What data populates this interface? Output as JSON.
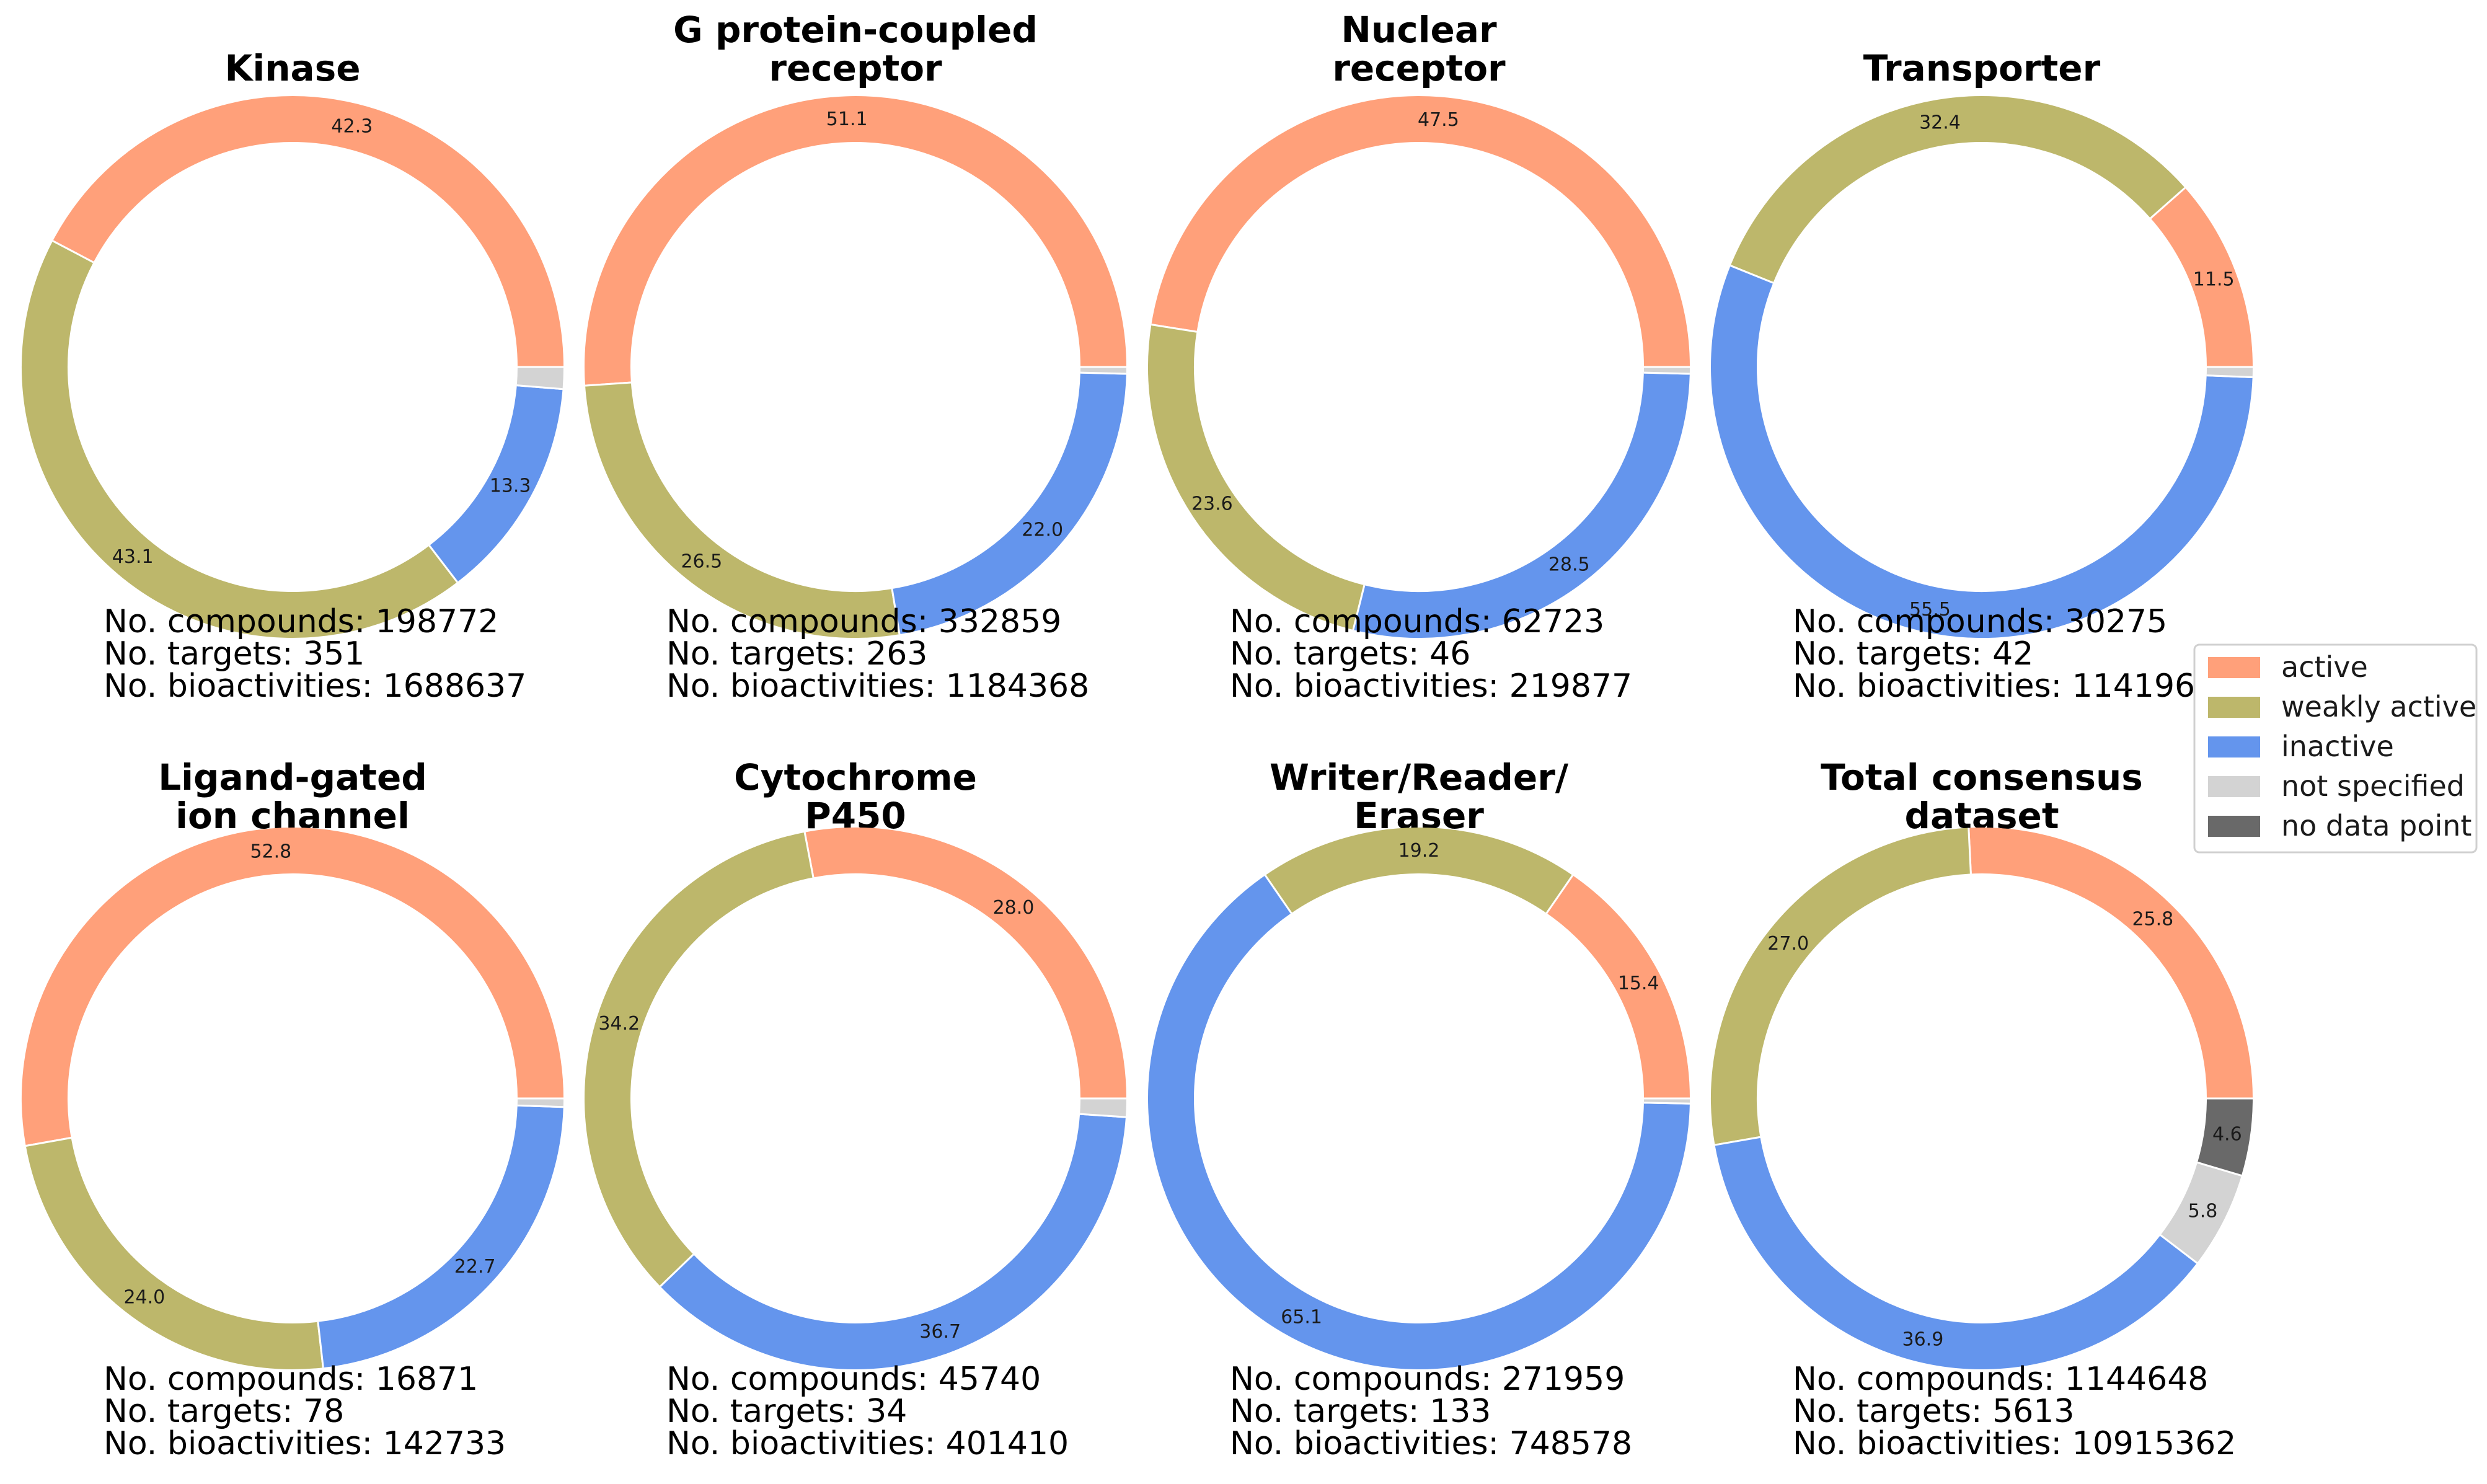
{
  "categories_meta": {
    "names": [
      "active",
      "weakly active",
      "inactive",
      "not specified",
      "no data point"
    ],
    "colors": [
      "#FFA07A",
      "#BDB76B",
      "#6495ED",
      "#D3D3D3",
      "#696969"
    ]
  },
  "chart_data": [
    {
      "type": "pie",
      "title_lines": [
        "Kinase"
      ],
      "categories": [
        "active",
        "weakly active",
        "inactive",
        "not specified",
        "no data point"
      ],
      "values": [
        42.3,
        43.1,
        13.3,
        1.3,
        0
      ],
      "labels": [
        "42.3",
        "43.1",
        "13.3",
        "",
        ""
      ],
      "stats": [
        "No. compounds: 198772",
        "No. targets: 351",
        "No. bioactivities: 1688637"
      ]
    },
    {
      "type": "pie",
      "title_lines": [
        "G protein-coupled",
        "receptor"
      ],
      "categories": [
        "active",
        "weakly active",
        "inactive",
        "not specified",
        "no data point"
      ],
      "values": [
        51.1,
        26.5,
        22.0,
        0.4,
        0
      ],
      "labels": [
        "51.1",
        "26.5",
        "22.0",
        "",
        ""
      ],
      "stats": [
        "No. compounds: 332859",
        "No. targets: 263",
        "No. bioactivities: 1184368"
      ]
    },
    {
      "type": "pie",
      "title_lines": [
        "Nuclear",
        "receptor"
      ],
      "categories": [
        "active",
        "weakly active",
        "inactive",
        "not specified",
        "no data point"
      ],
      "values": [
        47.5,
        23.6,
        28.5,
        0.4,
        0
      ],
      "labels": [
        "47.5",
        "23.6",
        "28.5",
        "",
        ""
      ],
      "stats": [
        "No. compounds: 62723",
        "No. targets: 46",
        "No. bioactivities: 219877"
      ]
    },
    {
      "type": "pie",
      "title_lines": [
        "Transporter"
      ],
      "categories": [
        "active",
        "weakly active",
        "inactive",
        "not specified",
        "no data point"
      ],
      "values": [
        11.5,
        32.4,
        55.5,
        0.6,
        0
      ],
      "labels": [
        "11.5",
        "32.4",
        "55.5",
        "",
        ""
      ],
      "stats": [
        "No. compounds: 30275",
        "No. targets: 42",
        "No. bioactivities: 114196"
      ]
    },
    {
      "type": "pie",
      "title_lines": [
        "Ligand-gated",
        "ion channel"
      ],
      "categories": [
        "active",
        "weakly active",
        "inactive",
        "not specified",
        "no data point"
      ],
      "values": [
        52.8,
        24.0,
        22.7,
        0.5,
        0
      ],
      "labels": [
        "52.8",
        "24.0",
        "22.7",
        "",
        ""
      ],
      "stats": [
        "No. compounds: 16871",
        "No. targets: 78",
        "No. bioactivities: 142733"
      ]
    },
    {
      "type": "pie",
      "title_lines": [
        "Cytochrome",
        "P450"
      ],
      "categories": [
        "active",
        "weakly active",
        "inactive",
        "not specified",
        "no data point"
      ],
      "values": [
        28.0,
        34.2,
        36.7,
        1.1,
        0
      ],
      "labels": [
        "28.0",
        "34.2",
        "36.7",
        "",
        ""
      ],
      "stats": [
        "No. compounds: 45740",
        "No. targets: 34",
        "No. bioactivities: 401410"
      ]
    },
    {
      "type": "pie",
      "title_lines": [
        "Writer/Reader/",
        "Eraser"
      ],
      "categories": [
        "active",
        "weakly active",
        "inactive",
        "not specified",
        "no data point"
      ],
      "values": [
        15.4,
        19.2,
        65.1,
        0.3,
        0
      ],
      "labels": [
        "15.4",
        "19.2",
        "65.1",
        "",
        ""
      ],
      "stats": [
        "No. compounds: 271959",
        "No. targets: 133",
        "No. bioactivities: 748578"
      ]
    },
    {
      "type": "pie",
      "title_lines": [
        "Total consensus",
        "dataset"
      ],
      "categories": [
        "active",
        "weakly active",
        "inactive",
        "not specified",
        "no data point"
      ],
      "values": [
        25.8,
        27.0,
        36.9,
        5.8,
        4.6
      ],
      "labels": [
        "25.8",
        "27.0",
        "36.9",
        "5.8",
        "4.6"
      ],
      "stats": [
        "No. compounds: 1144648",
        "No. targets: 5613",
        "No. bioactivities: 10915362"
      ]
    }
  ]
}
